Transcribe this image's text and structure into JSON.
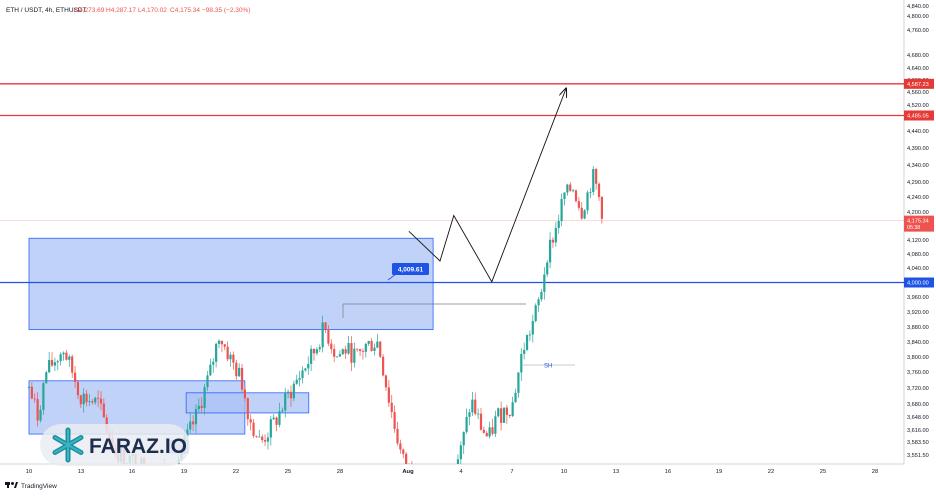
{
  "header": {
    "symbol": "ETH / USDT, 4h, ETHUSDT",
    "open": "O4,273.69",
    "high": "H4,287.17",
    "low": "L4,170.02",
    "close": "C4,175.34",
    "change": "−98.35 (−2.30%)"
  },
  "colors": {
    "up": "#26a69a",
    "down": "#ef5350",
    "zone_fill": "#a9c1f5",
    "zone_edge": "#2962ff",
    "resistance": "#e53935",
    "support": "#1e53e5"
  },
  "branding": {
    "tradingview": "TradingView",
    "watermark": "FARAZ.IO"
  },
  "chart_data": {
    "type": "candlestick",
    "title": "",
    "xlabel": "",
    "ylabel": "",
    "y_ticks": [
      "4,840.00",
      "4,800.00",
      "4,760.00",
      "4,680.00",
      "4,640.00",
      "4,600.00",
      "4,560.00",
      "4,520.00",
      "4,480.00",
      "4,440.00",
      "4,390.00",
      "4,340.00",
      "4,290.00",
      "4,240.00",
      "4,200.00",
      "4,160.00",
      "4,120.00",
      "4,080.00",
      "4,040.00",
      "3,960.00",
      "3,920.00",
      "3,880.00",
      "3,840.00",
      "3,800.00",
      "3,760.00",
      "3,720.00",
      "3,680.00",
      "3,648.00",
      "3,616.00",
      "3,583.50",
      "3,551.50"
    ],
    "x_ticks": [
      "10",
      "13",
      "16",
      "19",
      "22",
      "25",
      "28",
      "Aug",
      "4",
      "7",
      "10",
      "13",
      "16",
      "19",
      "22",
      "25",
      "28"
    ],
    "resistance_lines": [
      {
        "value": 4587.23,
        "label": "4,587.23"
      },
      {
        "value": 4485.05,
        "label": "4,485.05"
      }
    ],
    "support_line": {
      "value": 4000.0,
      "label": "4,000.00"
    },
    "last_price": {
      "value": 4175.34,
      "label": "4,175.34",
      "countdown": "05:38"
    },
    "callout": {
      "value": 4009.61,
      "label": "4,009.61"
    },
    "sh_label": "SH",
    "zones": [
      {
        "from_day": 0,
        "to_day": 23.4,
        "low": 3873,
        "high": 4125
      },
      {
        "from_day": 0,
        "to_day": 12.5,
        "low": 3605,
        "high": 3738
      },
      {
        "from_day": 9.1,
        "to_day": 16.2,
        "low": 3658,
        "high": 3708
      },
      {
        "from_day": 8.0,
        "to_day": 9.2,
        "low": 3557,
        "high": 3588
      }
    ],
    "projection": [
      {
        "day": 22.0,
        "price": 4145
      },
      {
        "day": 23.8,
        "price": 4060
      },
      {
        "day": 24.6,
        "price": 4190
      },
      {
        "day": 26.8,
        "price": 4002
      },
      {
        "day": 31.1,
        "price": 4572
      }
    ]
  }
}
